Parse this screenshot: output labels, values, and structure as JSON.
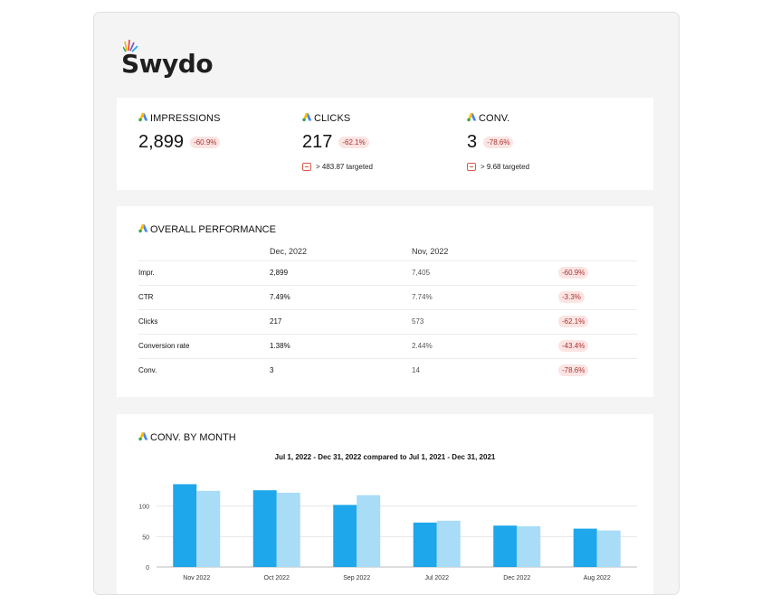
{
  "brand": {
    "name": "Swydo"
  },
  "colors": {
    "primary_bar": "#1ea7ea",
    "compare_bar": "#a8dcf7",
    "delta_text": "#a33333",
    "delta_bg": "#fbe4e2"
  },
  "icons": {
    "kpi": "google-ads-icon",
    "target": "target-flag-icon"
  },
  "kpis": [
    {
      "label": "IMPRESSIONS",
      "value": "2,899",
      "delta": "-60.9%",
      "target": ""
    },
    {
      "label": "CLICKS",
      "value": "217",
      "delta": "-62.1%",
      "target": "> 483.87 targeted"
    },
    {
      "label": "CONV.",
      "value": "3",
      "delta": "-78.6%",
      "target": "> 9.68 targeted"
    }
  ],
  "performance": {
    "title": "OVERALL PERFORMANCE",
    "columns": [
      "Dec, 2022",
      "Nov, 2022"
    ],
    "rows": [
      {
        "metric": "Impr.",
        "current": "2,899",
        "previous": "7,405",
        "change": "-60.9%"
      },
      {
        "metric": "CTR",
        "current": "7.49%",
        "previous": "7.74%",
        "change": "-3.3%"
      },
      {
        "metric": "Clicks",
        "current": "217",
        "previous": "573",
        "change": "-62.1%"
      },
      {
        "metric": "Conversion rate",
        "current": "1.38%",
        "previous": "2.44%",
        "change": "-43.4%"
      },
      {
        "metric": "Conv.",
        "current": "3",
        "previous": "14",
        "change": "-78.6%"
      }
    ]
  },
  "conv_chart": {
    "title": "CONV. BY MONTH",
    "subtitle": "Jul 1, 2022 - Dec 31, 2022 compared to Jul 1, 2021 - Dec 31, 2021"
  },
  "chart_data": {
    "type": "bar",
    "title": "Jul 1, 2022 - Dec 31, 2022 compared to Jul 1, 2021 - Dec 31, 2021",
    "categories": [
      "Nov 2022",
      "Oct 2022",
      "Sep 2022",
      "Jul 2022",
      "Dec 2022",
      "Aug 2022"
    ],
    "series": [
      {
        "values": [
          136,
          126,
          102,
          73,
          68,
          63
        ]
      },
      {
        "values": [
          125,
          122,
          118,
          76,
          67,
          60
        ]
      }
    ],
    "yticks": [
      "0",
      "50",
      "100"
    ],
    "ylim": [
      0,
      150
    ],
    "grid": true
  }
}
